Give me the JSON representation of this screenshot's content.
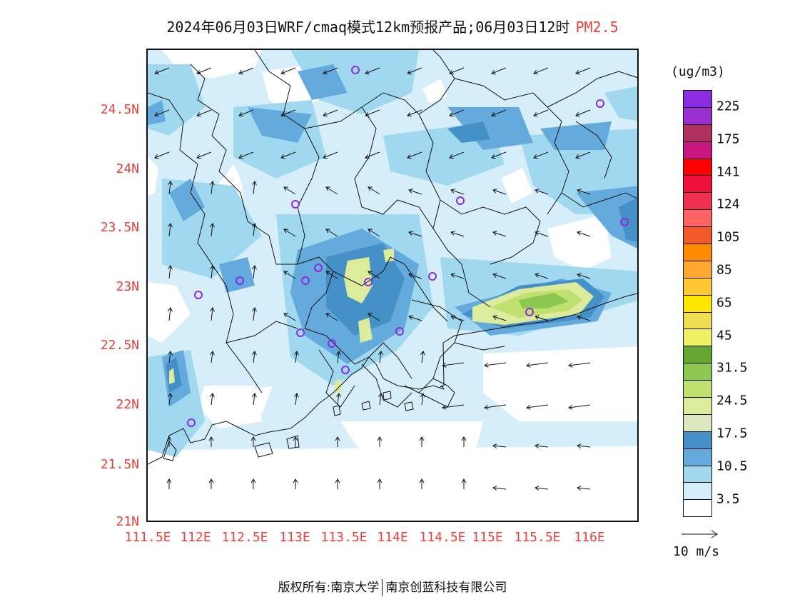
{
  "title": {
    "text": "2024年06月03日WRF/cmaq模式12km预报产品;06月03日12时",
    "variable": "PM2.5"
  },
  "map": {
    "lon_range": [
      111.5,
      116.7
    ],
    "lat_range": [
      21.0,
      25.0
    ],
    "lat_labels": [
      "24.5N",
      "24N",
      "23.5N",
      "23N",
      "22.5N",
      "22N",
      "21.5N",
      "21N"
    ],
    "lat_values": [
      24.5,
      24.0,
      23.5,
      23.0,
      22.5,
      22.0,
      21.5,
      21.0
    ],
    "lon_labels": [
      "111.5E",
      "112E",
      "112.5E",
      "113E",
      "113.5E",
      "114E",
      "114.5E",
      "115E",
      "115.5E",
      "116E"
    ],
    "lon_values": [
      111.5,
      112.0,
      112.5,
      113.0,
      113.5,
      114.0,
      114.5,
      115.0,
      115.5,
      116.0
    ]
  },
  "legend": {
    "units": "(ug/m3)",
    "colors": [
      "#8b2be2",
      "#9b30d0",
      "#b0305e",
      "#c8157f",
      "#ff0000",
      "#f0103c",
      "#f03050",
      "#ff6464",
      "#f05a28",
      "#ff8c00",
      "#ffa832",
      "#ffc832",
      "#ffe600",
      "#f0dc50",
      "#f0f064",
      "#64a832",
      "#8cc850",
      "#c0e070",
      "#dcec9c",
      "#dce8c0",
      "#4690c8",
      "#64aadc",
      "#a0d8f0",
      "#d6eefa",
      "#ffffff"
    ],
    "labels": [
      "225",
      "175",
      "141",
      "124",
      "105",
      "85",
      "65",
      "45",
      "31.5",
      "24.5",
      "17.5",
      "10.5",
      "3.5"
    ]
  },
  "reference_vector": {
    "label": "10 m/s"
  },
  "footer": {
    "left": "版权所有:南京大学",
    "right": "南京创蓝科技有限公司"
  }
}
